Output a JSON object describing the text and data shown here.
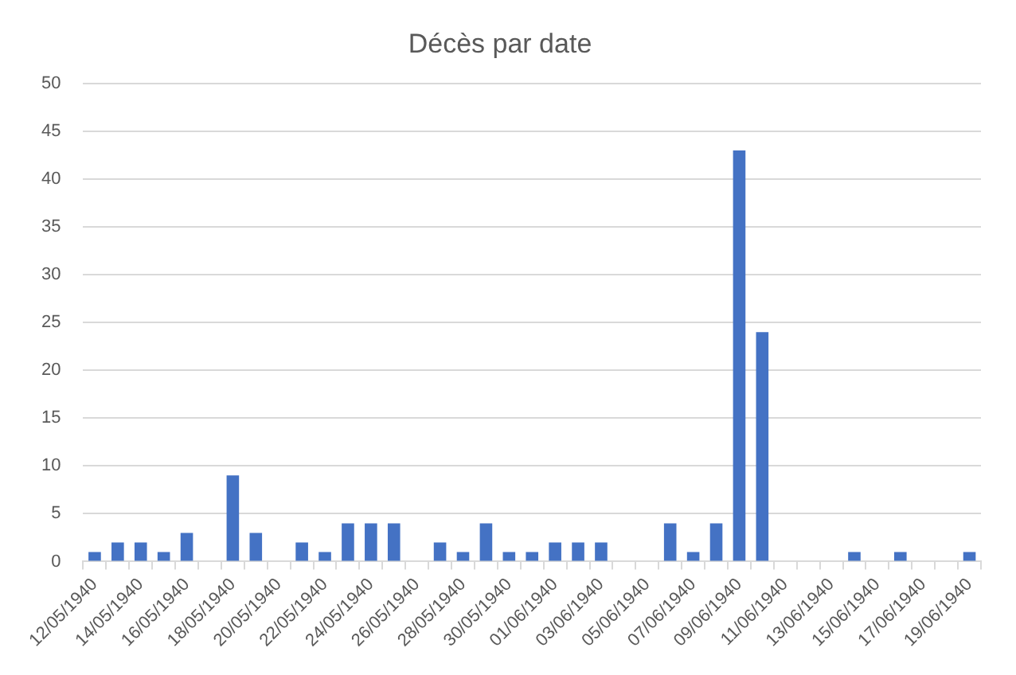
{
  "chart_data": {
    "type": "bar",
    "title": "Décès par date",
    "categories": [
      "12/05/1940",
      null,
      "14/05/1940",
      null,
      "16/05/1940",
      null,
      "18/05/1940",
      null,
      "20/05/1940",
      null,
      "22/05/1940",
      null,
      "24/05/1940",
      null,
      "26/05/1940",
      null,
      "28/05/1940",
      null,
      "30/05/1940",
      null,
      "01/06/1940",
      null,
      "03/06/1940",
      null,
      "05/06/1940",
      null,
      "07/06/1940",
      null,
      "09/06/1940",
      null,
      "11/06/1940",
      null,
      "13/06/1940",
      null,
      "15/06/1940",
      null,
      "17/06/1940",
      null,
      "19/06/1940"
    ],
    "values": [
      1,
      2,
      2,
      1,
      3,
      null,
      9,
      3,
      null,
      2,
      1,
      4,
      4,
      4,
      null,
      2,
      1,
      4,
      1,
      1,
      2,
      2,
      2,
      null,
      null,
      4,
      1,
      4,
      43,
      24,
      null,
      null,
      null,
      1,
      null,
      1,
      null,
      null,
      1
    ],
    "color": "#4472c4",
    "ylim": [
      0,
      50
    ],
    "yticks": [
      0,
      5,
      10,
      15,
      20,
      25,
      30,
      35,
      40,
      45,
      50
    ],
    "grid": "y"
  }
}
